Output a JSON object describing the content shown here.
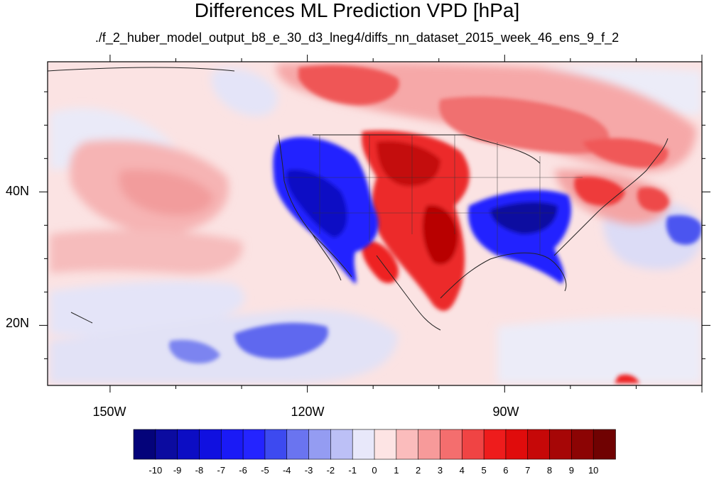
{
  "title": "Differences ML Prediction VPD [hPa]",
  "subtitle": "./f_2_huber_model_output_b8_e_30_d3_lneg4/diffs_nn_dataset_2015_week_46_ens_9_f_2",
  "lat_labels": [
    "40N",
    "20N"
  ],
  "lon_labels": [
    "150W",
    "120W",
    "90W"
  ],
  "lat_ticks": [
    40,
    20
  ],
  "lon_ticks": [
    -150,
    -120,
    -90
  ],
  "extent": {
    "lon_min": -159.5,
    "lon_max": -60,
    "lat_min": 11,
    "lat_max": 59.5
  },
  "colorbar": {
    "labels": [
      "-10",
      "-9",
      "-8",
      "-7",
      "-6",
      "-5",
      "-4",
      "-3",
      "-2",
      "-1",
      "0",
      "1",
      "2",
      "3",
      "4",
      "5",
      "6",
      "7",
      "8",
      "9",
      "10"
    ],
    "colors": [
      "#04037a",
      "#0b0ba0",
      "#0c0dc4",
      "#1010e0",
      "#1a1af6",
      "#2424ff",
      "#3d4af0",
      "#6a74f0",
      "#949cf2",
      "#bcc0f6",
      "#e8e8fa",
      "#fde4e4",
      "#fbbcbc",
      "#f79a9a",
      "#f46e6e",
      "#f04444",
      "#ee1c1c",
      "#e00c0c",
      "#c60808",
      "#a60606",
      "#8c0404",
      "#700202"
    ]
  },
  "colors": {
    "ocean_background": "#fbe3e3",
    "coast_line": "#222222"
  }
}
